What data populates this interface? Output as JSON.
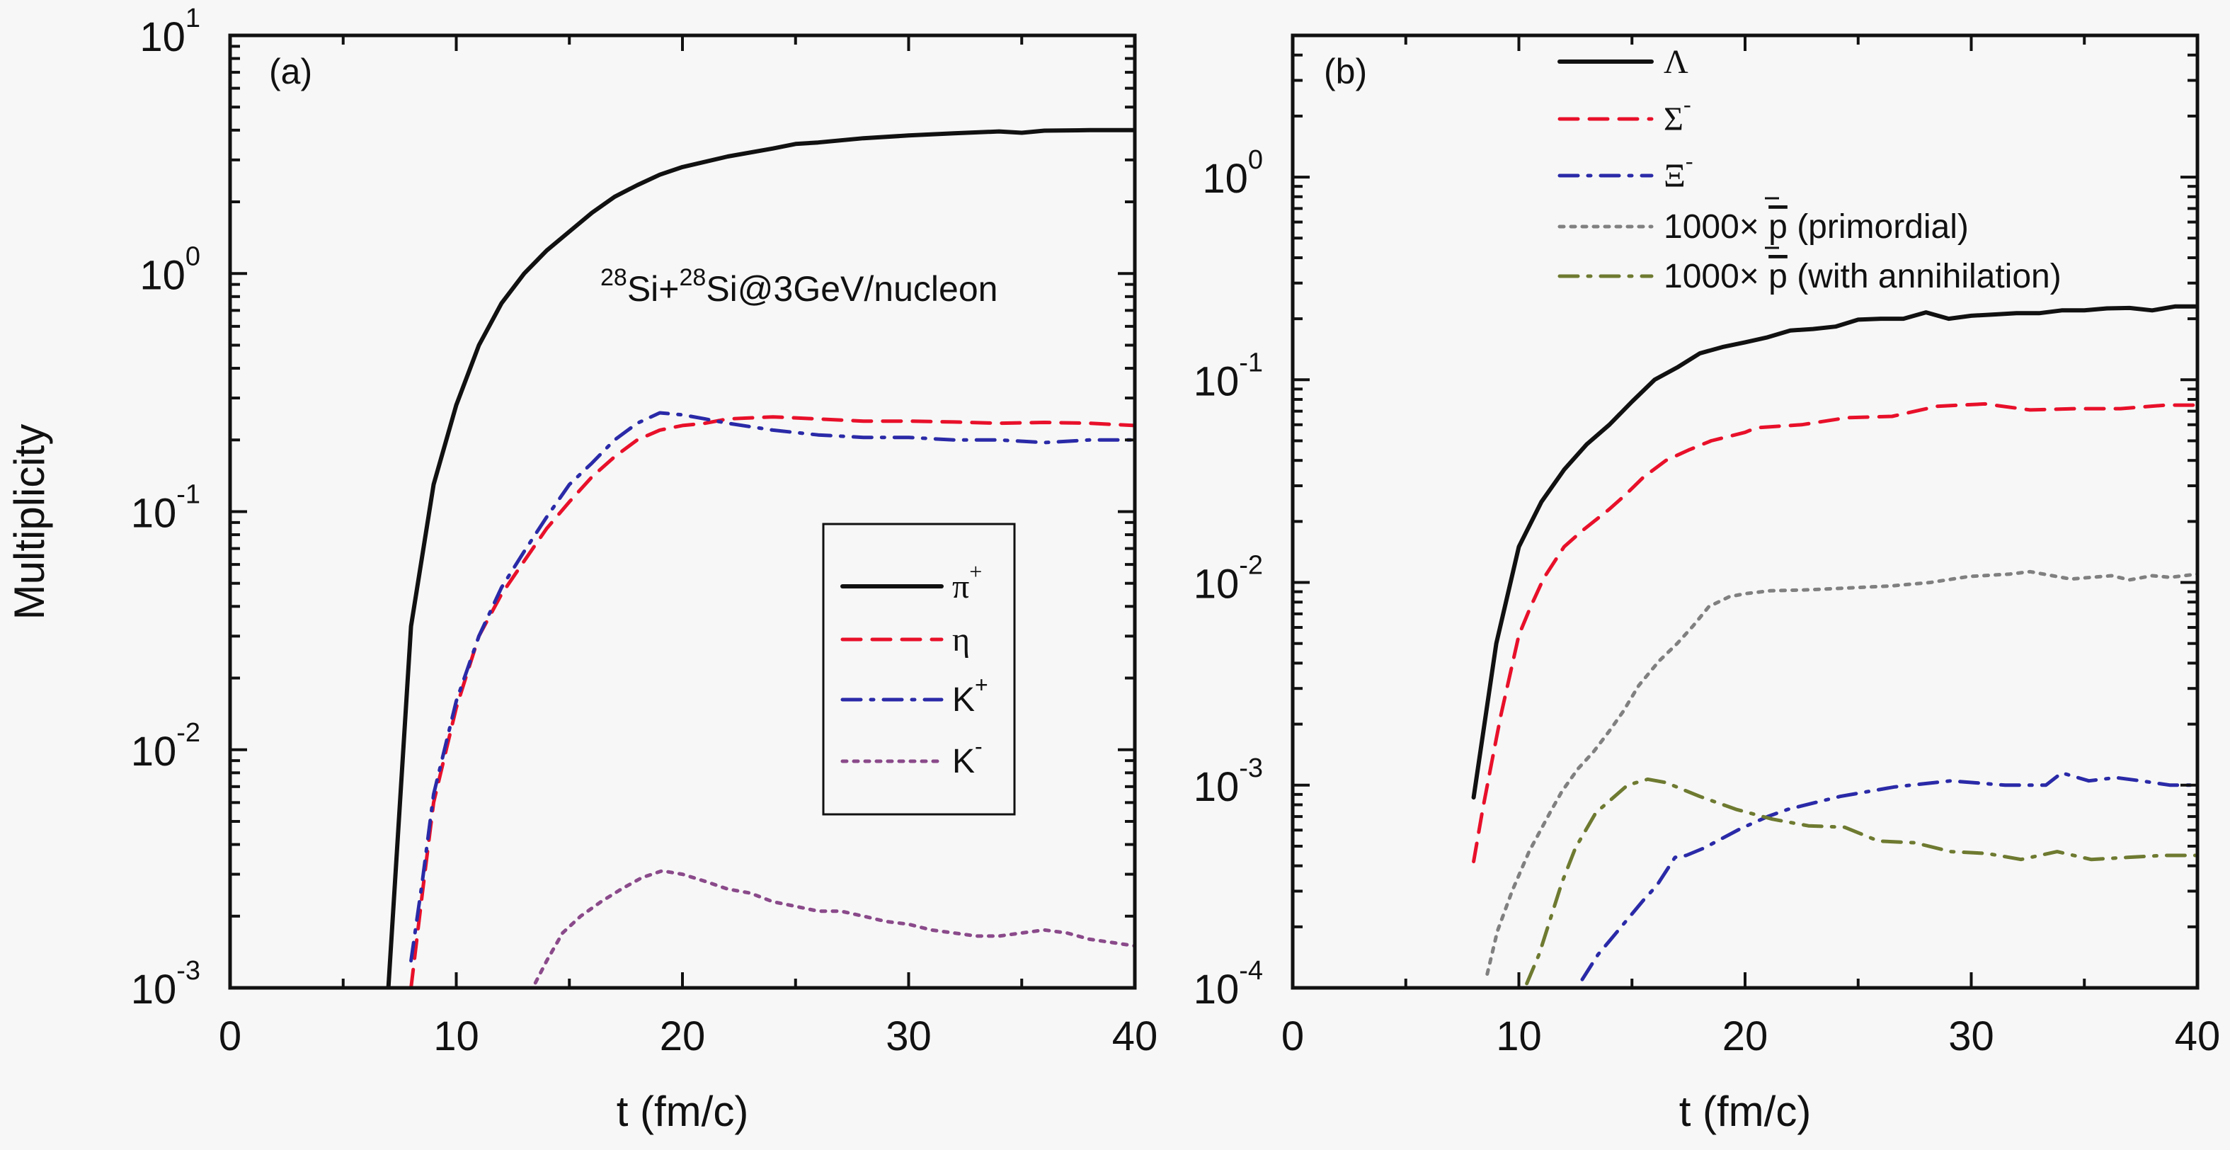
{
  "figure": {
    "ylabel": "Multiplicity",
    "xlabel": "t (fm/c)"
  },
  "chart_data": [
    {
      "type": "line",
      "panel_label": "(a)",
      "annotation": {
        "parts": [
          {
            "sup": "28"
          },
          {
            "text": "Si+"
          },
          {
            "sup": "28"
          },
          {
            "text": "Si@3GeV/nucleon"
          }
        ]
      },
      "xlabel": "t (fm/c)",
      "ylabel": "Multiplicity",
      "xlim": [
        0,
        40
      ],
      "ylim": [
        0.001,
        10
      ],
      "yscale": "log",
      "xticks": [
        0,
        10,
        20,
        30,
        40
      ],
      "xtick_labels": [
        "0",
        "10",
        "20",
        "30",
        "40"
      ],
      "yticks": [
        0.001,
        0.01,
        0.1,
        1,
        10
      ],
      "ytick_labels": [
        {
          "base": "10",
          "exp": "-3"
        },
        {
          "base": "10",
          "exp": "-2"
        },
        {
          "base": "10",
          "exp": "-1"
        },
        {
          "base": "10",
          "exp": "0"
        },
        {
          "base": "10",
          "exp": "1"
        }
      ],
      "grid": false,
      "legend": {
        "placement": "center-right",
        "boxed": true
      },
      "series": [
        {
          "name": "π+",
          "label_base": "π",
          "label_sup": "+",
          "serif": true,
          "color": "#111111",
          "dash": "solid",
          "width": 6,
          "x": [
            7,
            8,
            9,
            10,
            11,
            12,
            13,
            14,
            15,
            16,
            17,
            18,
            19,
            20,
            22,
            24,
            25,
            26,
            28,
            30,
            32,
            34,
            35,
            36,
            38,
            40
          ],
          "y": [
            0.001,
            0.033,
            0.13,
            0.28,
            0.5,
            0.75,
            1.0,
            1.25,
            1.5,
            1.8,
            2.1,
            2.35,
            2.6,
            2.8,
            3.1,
            3.35,
            3.5,
            3.55,
            3.7,
            3.8,
            3.88,
            3.95,
            3.9,
            3.98,
            4.0,
            4.0
          ]
        },
        {
          "name": "η",
          "label_base": "η",
          "label_sup": "",
          "serif": true,
          "color": "#e8102a",
          "dash": "dash",
          "width": 5,
          "x": [
            8,
            8.5,
            9,
            10,
            11,
            12,
            13,
            14,
            15,
            16,
            17,
            18,
            19,
            20,
            21,
            22,
            24,
            26,
            28,
            30,
            32,
            34,
            36,
            38,
            40
          ],
          "y": [
            0.001,
            0.0025,
            0.006,
            0.015,
            0.03,
            0.045,
            0.062,
            0.085,
            0.11,
            0.14,
            0.17,
            0.2,
            0.22,
            0.23,
            0.235,
            0.245,
            0.25,
            0.245,
            0.24,
            0.24,
            0.238,
            0.235,
            0.237,
            0.235,
            0.23
          ]
        },
        {
          "name": "K+",
          "label_base": "K",
          "label_sup": "+",
          "serif": false,
          "color": "#2a2aa8",
          "dash": "dashdot",
          "width": 5,
          "x": [
            8,
            8.5,
            9,
            10,
            11,
            12,
            13,
            14,
            15,
            16,
            17,
            18,
            19,
            20,
            21,
            22,
            24,
            26,
            28,
            30,
            32,
            34,
            36,
            38,
            40
          ],
          "y": [
            0.0013,
            0.0028,
            0.0065,
            0.016,
            0.03,
            0.048,
            0.068,
            0.095,
            0.13,
            0.16,
            0.2,
            0.235,
            0.26,
            0.255,
            0.245,
            0.235,
            0.22,
            0.21,
            0.205,
            0.205,
            0.2,
            0.2,
            0.195,
            0.2,
            0.2
          ]
        },
        {
          "name": "K-",
          "label_base": "K",
          "label_sup": "-",
          "serif": false,
          "color": "#8a4a8a",
          "dash": "dot",
          "width": 5,
          "x": [
            13.5,
            14,
            14.7,
            15.5,
            16.4,
            17.3,
            18.2,
            19.1,
            20,
            21,
            22,
            23,
            24,
            25,
            26,
            27,
            28,
            29,
            30,
            31,
            32,
            33,
            34,
            35,
            36,
            37,
            38,
            39,
            40
          ],
          "y": [
            0.00105,
            0.0013,
            0.0017,
            0.002,
            0.0023,
            0.0026,
            0.0029,
            0.0031,
            0.003,
            0.0028,
            0.0026,
            0.0025,
            0.0023,
            0.0022,
            0.0021,
            0.0021,
            0.002,
            0.0019,
            0.00185,
            0.00175,
            0.0017,
            0.00165,
            0.00165,
            0.0017,
            0.00175,
            0.0017,
            0.0016,
            0.00155,
            0.0015
          ]
        }
      ]
    },
    {
      "type": "line",
      "panel_label": "(b)",
      "xlabel": "t (fm/c)",
      "xlim": [
        0,
        40
      ],
      "ylim": [
        0.0001,
        5
      ],
      "yscale": "log",
      "xticks": [
        0,
        10,
        20,
        30,
        40
      ],
      "xtick_labels": [
        "0",
        "10",
        "20",
        "30",
        "40"
      ],
      "yticks": [
        0.0001,
        0.001,
        0.01,
        0.1,
        1
      ],
      "ytick_labels": [
        {
          "base": "10",
          "exp": "-4"
        },
        {
          "base": "10",
          "exp": "-3"
        },
        {
          "base": "10",
          "exp": "-2"
        },
        {
          "base": "10",
          "exp": "-1"
        },
        {
          "base": "10",
          "exp": "0"
        }
      ],
      "grid": false,
      "legend": {
        "placement": "top-center",
        "boxed": false
      },
      "series": [
        {
          "name": "Λ",
          "label_base": "Λ",
          "label_sup": "",
          "serif": true,
          "color": "#111111",
          "dash": "solid",
          "width": 6,
          "x": [
            8,
            9,
            10,
            11,
            12,
            13,
            14,
            15,
            16,
            17,
            18,
            19,
            20,
            21,
            22,
            23,
            24,
            25,
            26,
            27,
            28,
            29,
            30,
            31,
            32,
            33,
            34,
            35,
            36,
            37,
            38,
            39,
            40
          ],
          "y": [
            0.00087,
            0.005,
            0.015,
            0.025,
            0.036,
            0.048,
            0.06,
            0.078,
            0.1,
            0.115,
            0.135,
            0.145,
            0.153,
            0.162,
            0.175,
            0.178,
            0.183,
            0.198,
            0.2,
            0.2,
            0.215,
            0.2,
            0.207,
            0.21,
            0.213,
            0.213,
            0.22,
            0.22,
            0.225,
            0.226,
            0.22,
            0.23,
            0.23
          ]
        },
        {
          "name": "Σ-",
          "label_base": "Σ",
          "label_sup": "-",
          "serif": true,
          "color": "#e8102a",
          "dash": "dash",
          "width": 5,
          "x": [
            8,
            8.4,
            8.8,
            9.2,
            10,
            10.5,
            11.1,
            12,
            12.8,
            14,
            14.7,
            15.5,
            16.5,
            17.5,
            18.5,
            20,
            20.5,
            22.5,
            24.5,
            26.5,
            28.5,
            30.6,
            32.6,
            34.6,
            36.6,
            38.6,
            40
          ],
          "y": [
            0.00042,
            0.00076,
            0.0013,
            0.0022,
            0.0055,
            0.0075,
            0.0105,
            0.015,
            0.018,
            0.023,
            0.027,
            0.033,
            0.04,
            0.045,
            0.05,
            0.055,
            0.058,
            0.06,
            0.065,
            0.066,
            0.074,
            0.076,
            0.071,
            0.072,
            0.072,
            0.075,
            0.075
          ]
        },
        {
          "name": "Ξ-",
          "label_base": "Ξ",
          "label_sup": "-",
          "serif": true,
          "color": "#2a2aa8",
          "dash": "dashdot",
          "width": 5,
          "x": [
            12.8,
            13.5,
            14,
            15.5,
            16.1,
            16.9,
            17.4,
            18.2,
            18.9,
            19.8,
            21,
            21.9,
            24.2,
            26.6,
            29.1,
            31.5,
            33.3,
            34,
            35.2,
            36.4,
            37.5,
            38.8,
            40
          ],
          "y": [
            0.00011,
            0.000146,
            0.00017,
            0.00027,
            0.00032,
            0.00044,
            0.00045,
            0.00049,
            0.00054,
            0.00061,
            0.0007,
            0.00076,
            0.00088,
            0.00098,
            0.00105,
            0.001,
            0.001,
            0.00115,
            0.00105,
            0.00109,
            0.00105,
            0.001,
            0.001
          ]
        },
        {
          "name": "1000× p̄ (primordial)",
          "label_base": "1000× p̄ (primordial)",
          "label_sup": "",
          "serif": false,
          "pbar": true,
          "pbar_suffix": " (primordial)",
          "color": "#808080",
          "dash": "dot",
          "width": 5,
          "x": [
            8.6,
            9.05,
            9.7,
            10.45,
            11.4,
            11.9,
            12.6,
            13.3,
            14,
            14.6,
            15.3,
            16.2,
            17,
            17.7,
            18.4,
            19.3,
            20,
            21.1,
            22.8,
            24.6,
            26.4,
            28.2,
            29.9,
            31.7,
            32.6,
            34.4,
            36.2,
            37,
            38,
            38.8,
            40
          ],
          "y": [
            0.000117,
            0.00019,
            0.0003,
            0.00047,
            0.00074,
            0.00093,
            0.0012,
            0.00146,
            0.00185,
            0.0023,
            0.0031,
            0.0041,
            0.005,
            0.0061,
            0.0076,
            0.0085,
            0.0088,
            0.0091,
            0.0092,
            0.0094,
            0.0096,
            0.01,
            0.0107,
            0.011,
            0.0113,
            0.0104,
            0.0108,
            0.0103,
            0.0108,
            0.0106,
            0.011
          ]
        },
        {
          "name": "1000× p̄ (with annihilation)",
          "label_base": "1000× p̄ (with annihilation)",
          "label_sup": "",
          "serif": false,
          "pbar": true,
          "pbar_suffix": " (with annihilation)",
          "color": "#6e7a30",
          "dash": "dashdot",
          "width": 5,
          "x": [
            10.35,
            10.9,
            11.4,
            11.9,
            12.5,
            13.4,
            14.8,
            15.7,
            16.5,
            18,
            19.6,
            21.2,
            22.8,
            24.4,
            25.9,
            27.5,
            29.1,
            30.7,
            32.2,
            33.8,
            35.3,
            36.9,
            38.5,
            40
          ],
          "y": [
            0.000105,
            0.000147,
            0.00022,
            0.00033,
            0.00049,
            0.00073,
            0.001,
            0.00107,
            0.00103,
            0.00088,
            0.00076,
            0.00068,
            0.00063,
            0.00062,
            0.00053,
            0.00052,
            0.00047,
            0.00046,
            0.00043,
            0.00047,
            0.00043,
            0.00044,
            0.00045,
            0.00045
          ]
        }
      ]
    }
  ]
}
